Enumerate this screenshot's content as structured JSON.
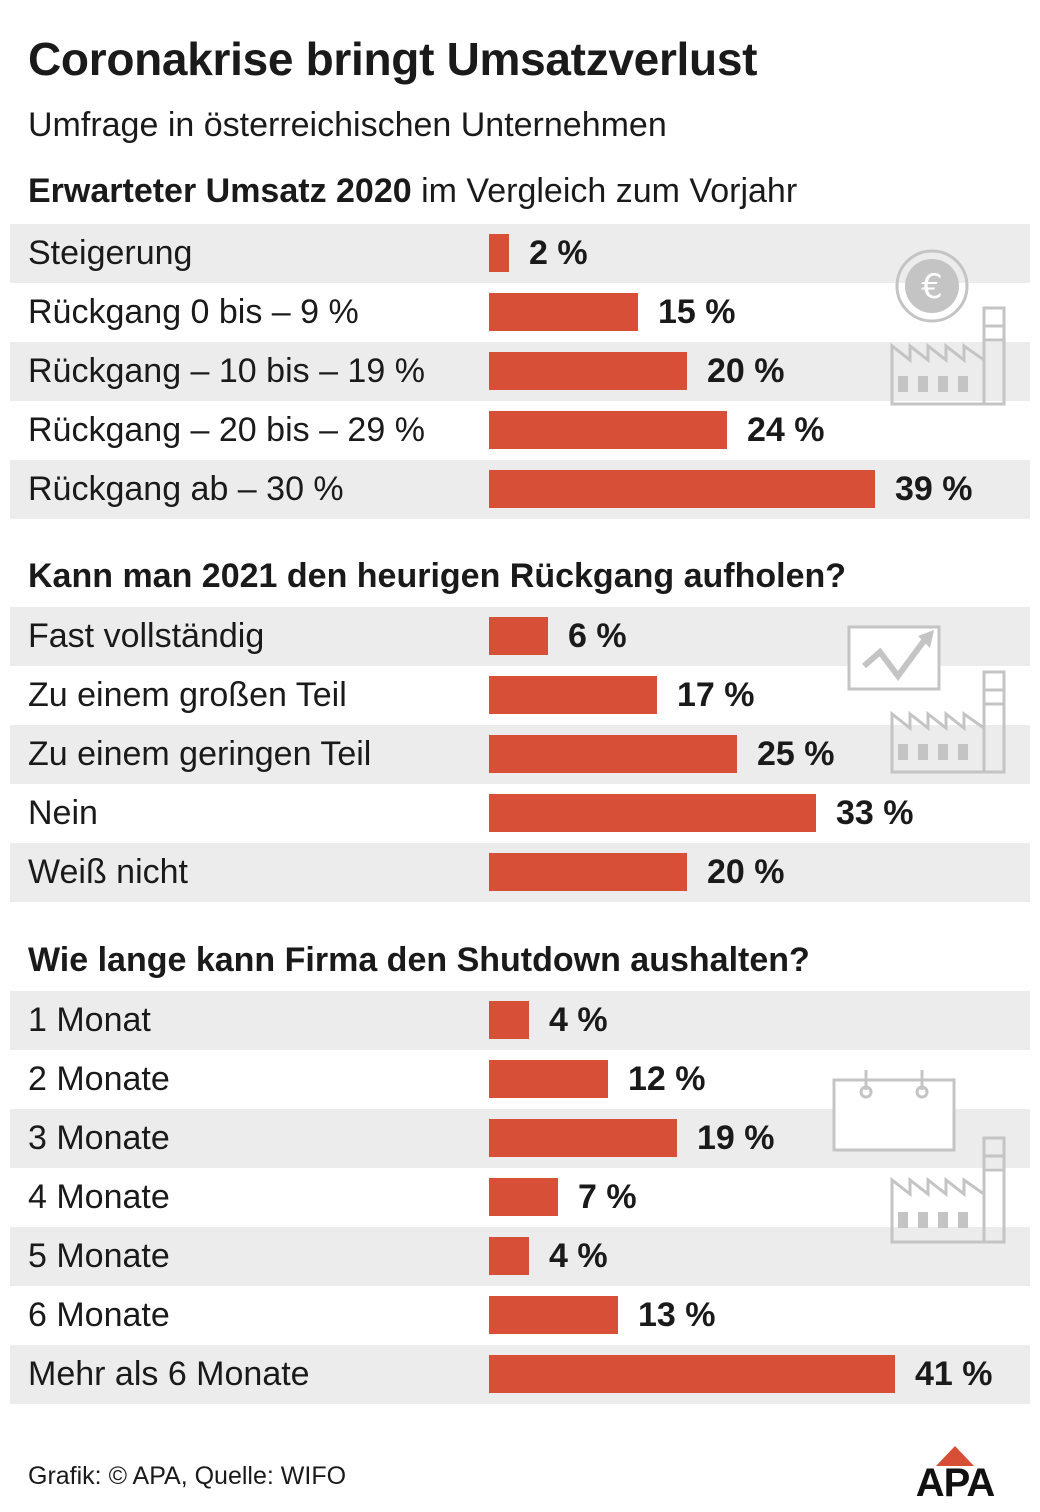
{
  "title": "Coronakrise bringt Umsatzverlust",
  "subtitle": "Umfrage in österreichischen Unternehmen",
  "chart_data": [
    {
      "type": "bar",
      "title_bold": "Erwarteter Umsatz 2020",
      "title_rest": " im Vergleich zum Vorjahr",
      "categories": [
        "Steigerung",
        "Rückgang 0 bis – 9 %",
        "Rückgang – 10 bis – 19 %",
        "Rückgang – 20 bis – 29 %",
        "Rückgang ab – 30 %"
      ],
      "values": [
        2,
        15,
        20,
        24,
        39
      ],
      "value_labels": [
        "2 %",
        "15 %",
        "20 %",
        "24 %",
        "39 %"
      ],
      "unit": "%",
      "icon": "euro-factory-icon"
    },
    {
      "type": "bar",
      "title_bold": "Kann man 2021 den heurigen Rückgang aufholen?",
      "title_rest": "",
      "categories": [
        "Fast vollständig",
        "Zu einem großen Teil",
        "Zu einem geringen Teil",
        "Nein",
        "Weiß nicht"
      ],
      "values": [
        6,
        17,
        25,
        33,
        20
      ],
      "value_labels": [
        "6 %",
        "17 %",
        "25 %",
        "33 %",
        "20 %"
      ],
      "unit": "%",
      "icon": "trend-chart-factory-icon"
    },
    {
      "type": "bar",
      "title_bold": "Wie lange kann Firma den Shutdown aushalten?",
      "title_rest": "",
      "categories": [
        "1 Monat",
        "2 Monate",
        "3 Monate",
        "4 Monate",
        "5 Monate",
        "6 Monate",
        "Mehr als 6 Monate"
      ],
      "values": [
        4,
        12,
        19,
        7,
        4,
        13,
        41
      ],
      "value_labels": [
        "4 %",
        "12 %",
        "19 %",
        "7 %",
        "4 %",
        "13 %",
        "41 %"
      ],
      "unit": "%",
      "icon": "calendar-factory-icon"
    }
  ],
  "colors": {
    "bar": "#d84f38",
    "row_shade": "#ececec",
    "icon_gray": "#c4c4c4"
  },
  "footer": "Grafik: © APA, Quelle: WIFO",
  "logo_text": "APA"
}
